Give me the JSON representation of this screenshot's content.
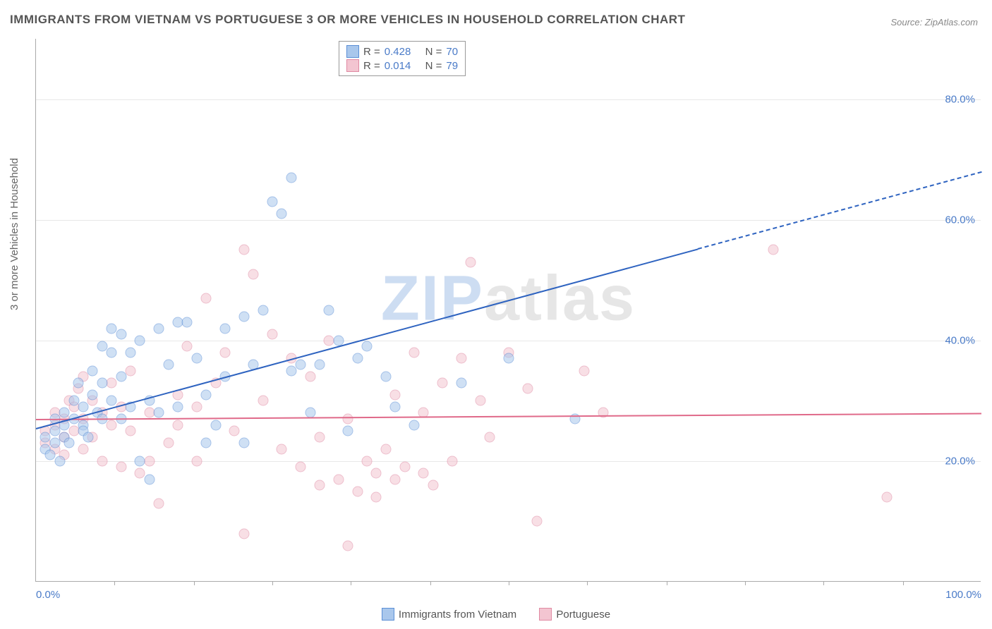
{
  "title": "IMMIGRANTS FROM VIETNAM VS PORTUGUESE 3 OR MORE VEHICLES IN HOUSEHOLD CORRELATION CHART",
  "source": "Source: ZipAtlas.com",
  "ylabel": "3 or more Vehicles in Household",
  "watermark": {
    "z": "ZIP",
    "rest": "atlas"
  },
  "chart": {
    "type": "scatter",
    "xlim": [
      0,
      100
    ],
    "ylim": [
      0,
      90
    ],
    "xtick_labels": {
      "0": "0.0%",
      "100": "100.0%"
    },
    "xtick_minor": [
      8.3,
      16.7,
      25,
      33.3,
      41.7,
      50,
      58.3,
      66.7,
      75,
      83.3,
      91.7
    ],
    "ytick_labels": {
      "20": "20.0%",
      "40": "40.0%",
      "60": "60.0%",
      "80": "80.0%"
    },
    "background_color": "#ffffff",
    "grid_color": "#e8e8e8",
    "axis_color": "#aaaaaa",
    "tick_label_color": "#4a7bc8",
    "marker_radius": 7.5,
    "marker_opacity": 0.55,
    "series": {
      "vietnam": {
        "label": "Immigrants from Vietnam",
        "fill": "#a9c7ec",
        "stroke": "#5b8fd6",
        "R": "0.428",
        "N": "70",
        "trend": {
          "x1": 0,
          "y1": 25.5,
          "x2": 100,
          "y2": 68,
          "solid_until_x": 70,
          "color": "#2e63c0",
          "width": 2
        },
        "points": [
          [
            1,
            22
          ],
          [
            1,
            24
          ],
          [
            1.5,
            21
          ],
          [
            2,
            25
          ],
          [
            2,
            27
          ],
          [
            2,
            23
          ],
          [
            2.5,
            20
          ],
          [
            3,
            26
          ],
          [
            3,
            24
          ],
          [
            3,
            28
          ],
          [
            3.5,
            23
          ],
          [
            4,
            30
          ],
          [
            4,
            27
          ],
          [
            4.5,
            33
          ],
          [
            5,
            29
          ],
          [
            5,
            26
          ],
          [
            5,
            25
          ],
          [
            5.5,
            24
          ],
          [
            6,
            35
          ],
          [
            6,
            31
          ],
          [
            6.5,
            28
          ],
          [
            7,
            39
          ],
          [
            7,
            33
          ],
          [
            7,
            27
          ],
          [
            8,
            42
          ],
          [
            8,
            30
          ],
          [
            8,
            38
          ],
          [
            9,
            41
          ],
          [
            9,
            34
          ],
          [
            9,
            27
          ],
          [
            10,
            38
          ],
          [
            10,
            29
          ],
          [
            11,
            40
          ],
          [
            11,
            20
          ],
          [
            12,
            17
          ],
          [
            12,
            30
          ],
          [
            13,
            42
          ],
          [
            13,
            28
          ],
          [
            14,
            36
          ],
          [
            15,
            29
          ],
          [
            15,
            43
          ],
          [
            16,
            43
          ],
          [
            17,
            37
          ],
          [
            18,
            23
          ],
          [
            18,
            31
          ],
          [
            19,
            26
          ],
          [
            20,
            42
          ],
          [
            20,
            34
          ],
          [
            22,
            44
          ],
          [
            22,
            23
          ],
          [
            23,
            36
          ],
          [
            24,
            45
          ],
          [
            25,
            63
          ],
          [
            26,
            61
          ],
          [
            27,
            67
          ],
          [
            27,
            35
          ],
          [
            28,
            36
          ],
          [
            29,
            28
          ],
          [
            30,
            36
          ],
          [
            31,
            45
          ],
          [
            32,
            40
          ],
          [
            33,
            25
          ],
          [
            34,
            37
          ],
          [
            35,
            39
          ],
          [
            37,
            34
          ],
          [
            38,
            29
          ],
          [
            40,
            26
          ],
          [
            45,
            33
          ],
          [
            50,
            37
          ],
          [
            57,
            27
          ]
        ]
      },
      "portuguese": {
        "label": "Portuguese",
        "fill": "#f3c5d1",
        "stroke": "#e08aa3",
        "R": "0.014",
        "N": "79",
        "trend": {
          "x1": 0,
          "y1": 27,
          "x2": 100,
          "y2": 28,
          "solid_until_x": 100,
          "color": "#e06a8a",
          "width": 2
        },
        "points": [
          [
            1,
            23
          ],
          [
            1,
            25
          ],
          [
            2,
            22
          ],
          [
            2,
            26
          ],
          [
            2,
            28
          ],
          [
            3,
            21
          ],
          [
            3,
            24
          ],
          [
            3,
            27
          ],
          [
            3.5,
            30
          ],
          [
            4,
            25
          ],
          [
            4,
            29
          ],
          [
            4.5,
            32
          ],
          [
            5,
            22
          ],
          [
            5,
            27
          ],
          [
            5,
            34
          ],
          [
            6,
            24
          ],
          [
            6,
            30
          ],
          [
            7,
            28
          ],
          [
            7,
            20
          ],
          [
            8,
            26
          ],
          [
            8,
            33
          ],
          [
            9,
            19
          ],
          [
            9,
            29
          ],
          [
            10,
            25
          ],
          [
            10,
            35
          ],
          [
            11,
            18
          ],
          [
            12,
            28
          ],
          [
            12,
            20
          ],
          [
            13,
            13
          ],
          [
            14,
            23
          ],
          [
            15,
            31
          ],
          [
            15,
            26
          ],
          [
            16,
            39
          ],
          [
            17,
            29
          ],
          [
            17,
            20
          ],
          [
            18,
            47
          ],
          [
            19,
            33
          ],
          [
            20,
            38
          ],
          [
            21,
            25
          ],
          [
            22,
            55
          ],
          [
            22,
            8
          ],
          [
            23,
            51
          ],
          [
            24,
            30
          ],
          [
            25,
            41
          ],
          [
            26,
            22
          ],
          [
            27,
            37
          ],
          [
            28,
            19
          ],
          [
            29,
            34
          ],
          [
            30,
            24
          ],
          [
            30,
            16
          ],
          [
            31,
            40
          ],
          [
            32,
            17
          ],
          [
            33,
            27
          ],
          [
            34,
            15
          ],
          [
            35,
            20
          ],
          [
            36,
            18
          ],
          [
            37,
            22
          ],
          [
            38,
            31
          ],
          [
            38,
            17
          ],
          [
            39,
            19
          ],
          [
            40,
            38
          ],
          [
            41,
            28
          ],
          [
            42,
            16
          ],
          [
            43,
            33
          ],
          [
            44,
            20
          ],
          [
            45,
            37
          ],
          [
            46,
            53
          ],
          [
            47,
            30
          ],
          [
            48,
            24
          ],
          [
            50,
            38
          ],
          [
            52,
            32
          ],
          [
            53,
            10
          ],
          [
            58,
            35
          ],
          [
            60,
            28
          ],
          [
            78,
            55
          ],
          [
            90,
            14
          ],
          [
            33,
            6
          ],
          [
            36,
            14
          ],
          [
            41,
            18
          ]
        ]
      }
    }
  },
  "legend_top": {
    "Rlabel": "R =",
    "Nlabel": "N ="
  }
}
